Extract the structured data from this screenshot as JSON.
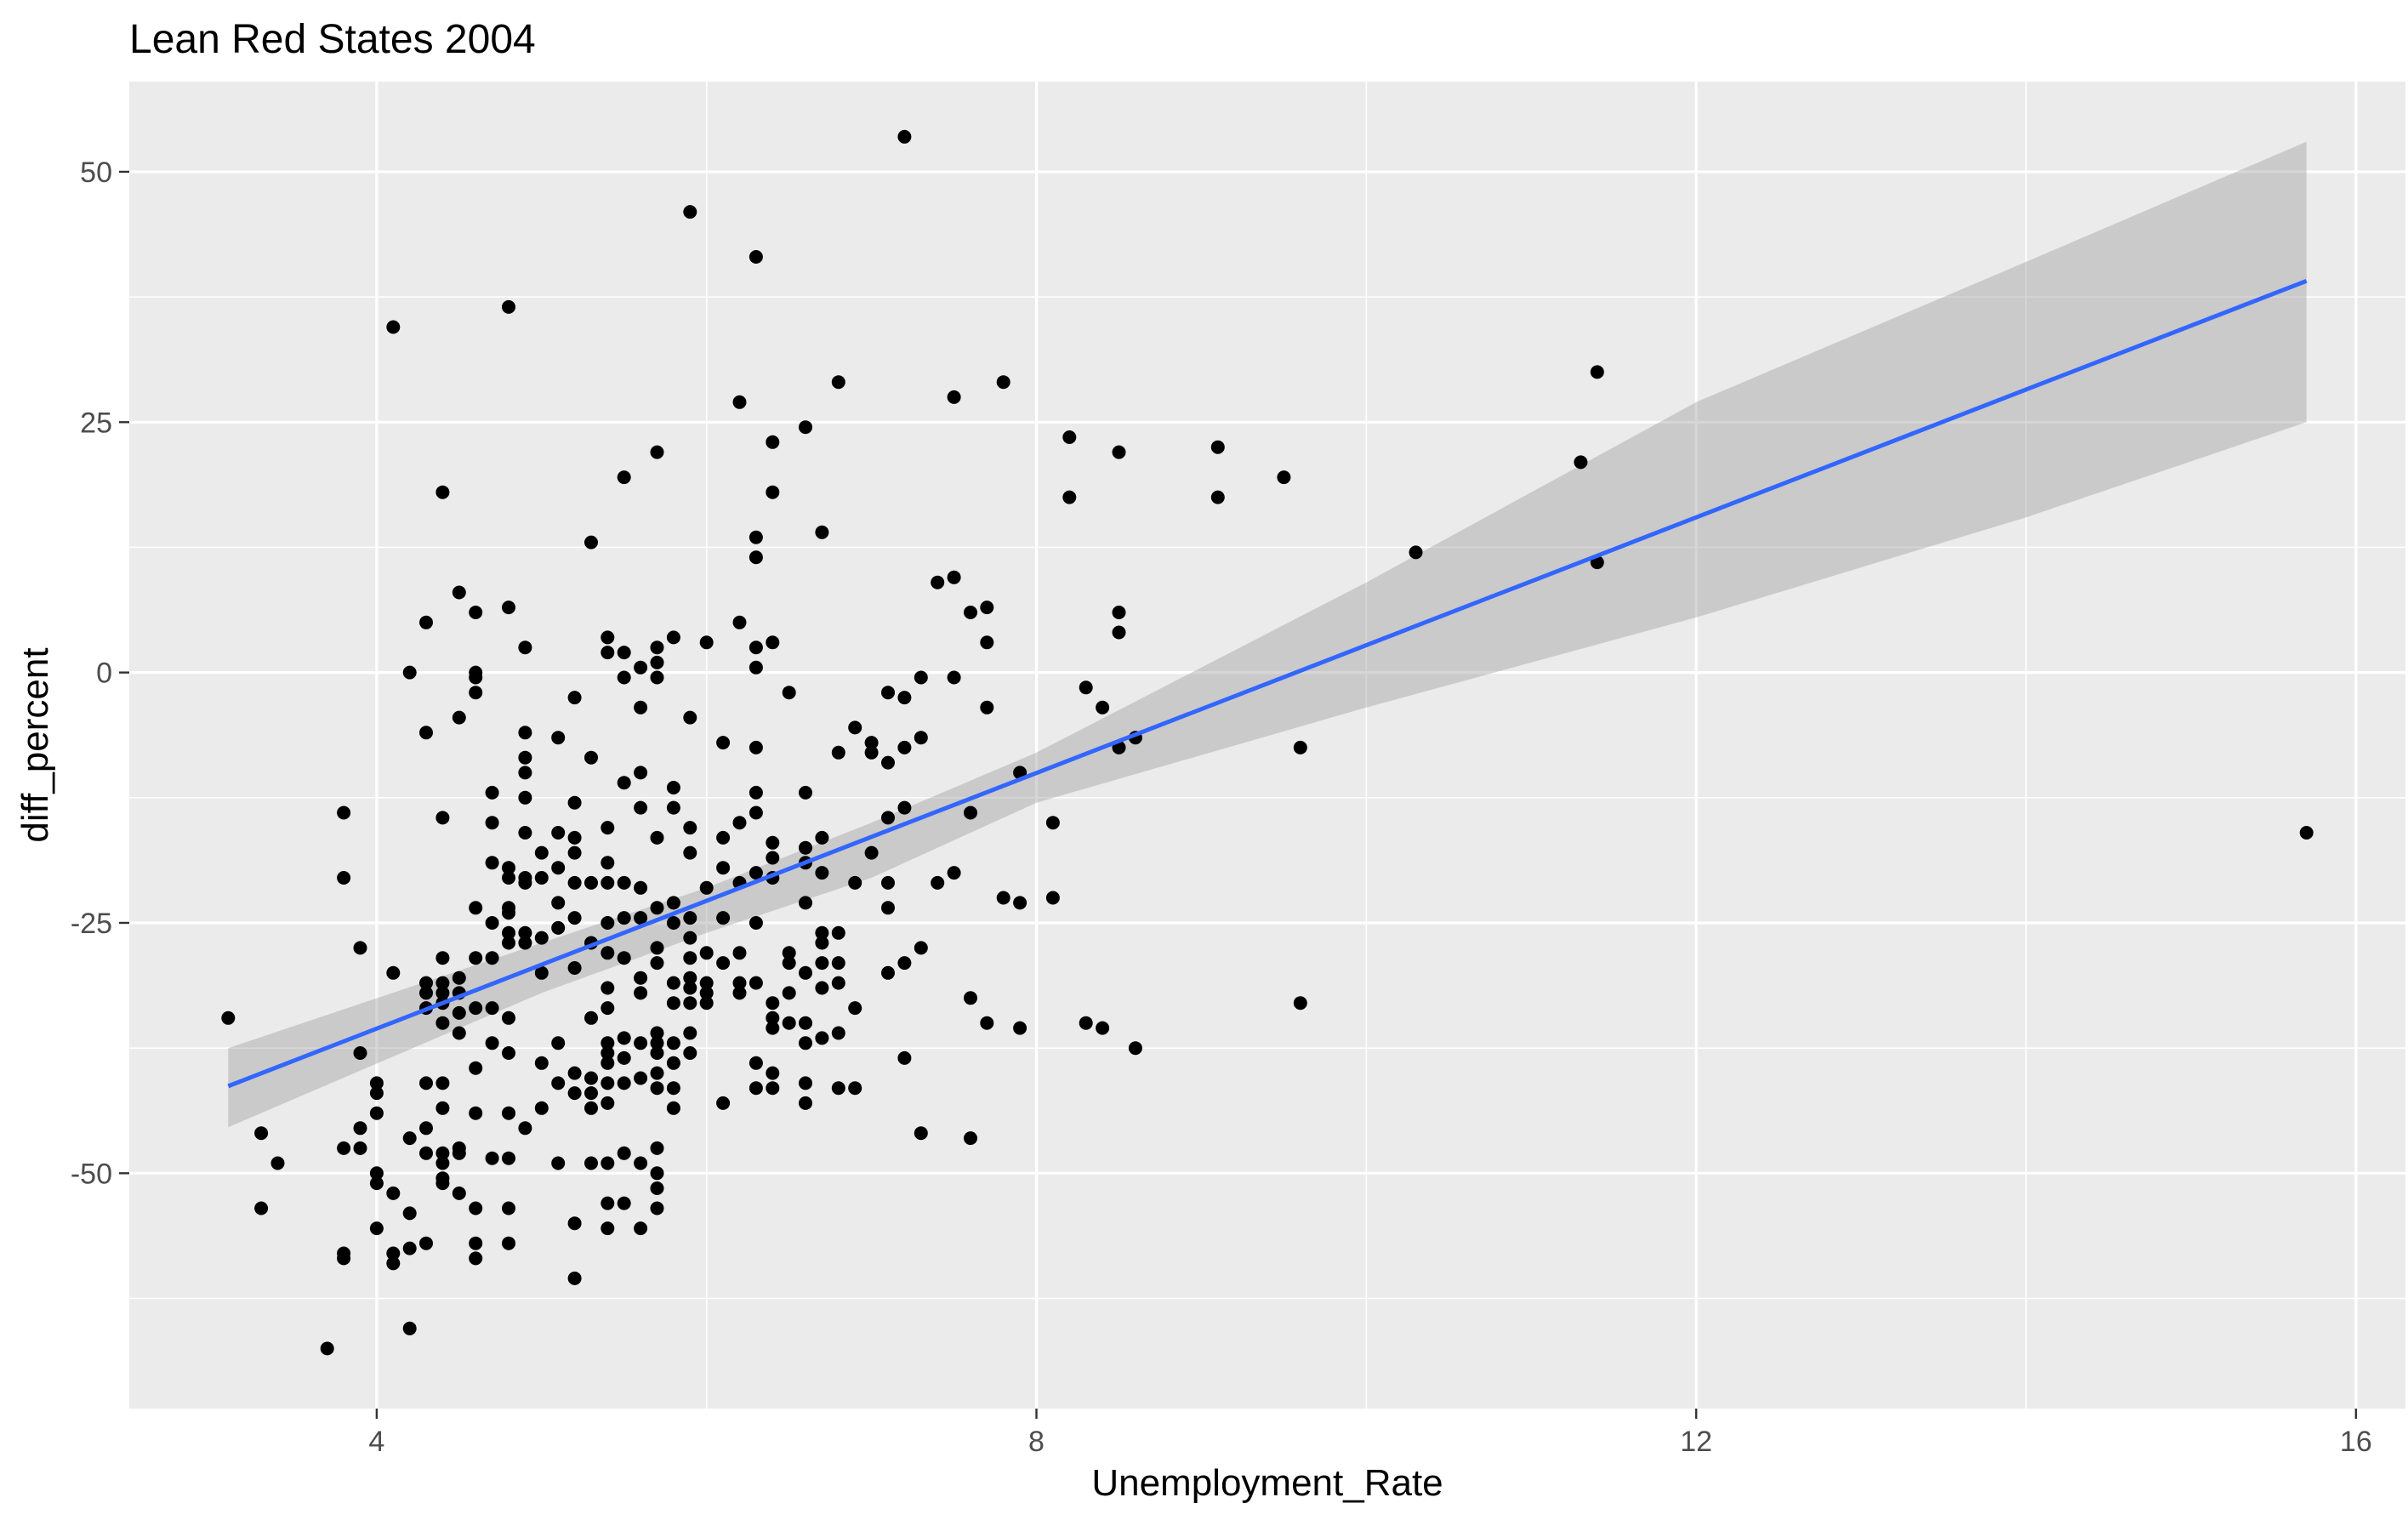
{
  "chart_data": {
    "type": "scatter",
    "title": "Lean Red States 2004",
    "xlabel": "Unemployment_Rate",
    "ylabel": "diff_percent",
    "xlim": [
      2.5,
      16.3
    ],
    "ylim": [
      -73.5,
      59
    ],
    "x_ticks": [
      4,
      8,
      12,
      16
    ],
    "x_tick_labels": [
      "4",
      "8",
      "12",
      "16"
    ],
    "y_ticks": [
      50,
      25,
      0,
      -25,
      -50
    ],
    "y_tick_labels": [
      "50",
      "25",
      "0",
      "-25",
      "-50"
    ],
    "grid": true,
    "legend": "none",
    "colors": {
      "points": "#000000",
      "fit_line": "#3366ff",
      "confidence_band": "#999999",
      "panel": "#ebebeb"
    },
    "fit": {
      "method": "linear",
      "line": [
        [
          3.1,
          -41.3
        ],
        [
          15.7,
          39.1
        ]
      ],
      "band_upper": [
        [
          3.1,
          -37.5
        ],
        [
          5.0,
          -27.0
        ],
        [
          6.0,
          -21.5
        ],
        [
          7.0,
          -15.0
        ],
        [
          8.0,
          -8.0
        ],
        [
          10.0,
          9.0
        ],
        [
          12.0,
          27.0
        ],
        [
          14.0,
          41.0
        ],
        [
          15.7,
          53.0
        ]
      ],
      "band_lower": [
        [
          3.1,
          -45.4
        ],
        [
          5.0,
          -32.0
        ],
        [
          6.0,
          -26.0
        ],
        [
          7.0,
          -20.5
        ],
        [
          8.0,
          -13.0
        ],
        [
          10.0,
          -3.5
        ],
        [
          12.0,
          5.5
        ],
        [
          14.0,
          15.5
        ],
        [
          15.7,
          25.0
        ]
      ]
    },
    "points": [
      [
        3.1,
        -34.5
      ],
      [
        3.3,
        -46
      ],
      [
        3.3,
        -53.5
      ],
      [
        3.4,
        -49
      ],
      [
        3.7,
        -67.5
      ],
      [
        3.8,
        -14
      ],
      [
        3.8,
        -20.5
      ],
      [
        3.8,
        -47.5
      ],
      [
        3.8,
        -58
      ],
      [
        3.8,
        -58.5
      ],
      [
        3.9,
        -27.5
      ],
      [
        3.9,
        -38
      ],
      [
        3.9,
        -45.5
      ],
      [
        3.9,
        -47.5
      ],
      [
        4.0,
        -41
      ],
      [
        4.0,
        -42
      ],
      [
        4.0,
        -44
      ],
      [
        4.0,
        -50
      ],
      [
        4.0,
        -51
      ],
      [
        4.0,
        -55.5
      ],
      [
        4.1,
        -30
      ],
      [
        4.1,
        -52
      ],
      [
        4.1,
        -58
      ],
      [
        4.1,
        -59
      ],
      [
        4.1,
        34.5
      ],
      [
        4.2,
        0
      ],
      [
        4.2,
        -46.5
      ],
      [
        4.2,
        -54
      ],
      [
        4.2,
        -57.5
      ],
      [
        4.2,
        -65.5
      ],
      [
        4.3,
        5
      ],
      [
        4.3,
        -6
      ],
      [
        4.3,
        -31
      ],
      [
        4.3,
        -32
      ],
      [
        4.3,
        -33.5
      ],
      [
        4.3,
        -41
      ],
      [
        4.3,
        -45.5
      ],
      [
        4.3,
        -48
      ],
      [
        4.3,
        -57
      ],
      [
        4.4,
        18
      ],
      [
        4.4,
        -14.5
      ],
      [
        4.4,
        -28.5
      ],
      [
        4.4,
        -31
      ],
      [
        4.4,
        -32
      ],
      [
        4.4,
        -33
      ],
      [
        4.4,
        -35
      ],
      [
        4.4,
        -41
      ],
      [
        4.4,
        -43.5
      ],
      [
        4.4,
        -48
      ],
      [
        4.4,
        -49
      ],
      [
        4.4,
        -50.5
      ],
      [
        4.4,
        -51
      ],
      [
        4.5,
        8
      ],
      [
        4.5,
        -4.5
      ],
      [
        4.5,
        -30.5
      ],
      [
        4.5,
        -32
      ],
      [
        4.5,
        -34
      ],
      [
        4.5,
        -36
      ],
      [
        4.5,
        -47.5
      ],
      [
        4.5,
        -48
      ],
      [
        4.5,
        -52
      ],
      [
        4.6,
        6
      ],
      [
        4.6,
        0
      ],
      [
        4.6,
        -0.5
      ],
      [
        4.6,
        -2
      ],
      [
        4.6,
        -23.5
      ],
      [
        4.6,
        -28.5
      ],
      [
        4.6,
        -33.5
      ],
      [
        4.6,
        -39.5
      ],
      [
        4.6,
        -44
      ],
      [
        4.6,
        -53.5
      ],
      [
        4.6,
        -57
      ],
      [
        4.6,
        -58.5
      ],
      [
        4.7,
        -12
      ],
      [
        4.7,
        -15
      ],
      [
        4.7,
        -19
      ],
      [
        4.7,
        -25
      ],
      [
        4.7,
        -28.5
      ],
      [
        4.7,
        -33.5
      ],
      [
        4.7,
        -37
      ],
      [
        4.7,
        -48.5
      ],
      [
        4.8,
        36.5
      ],
      [
        4.8,
        6.5
      ],
      [
        4.8,
        -19.5
      ],
      [
        4.8,
        -20.5
      ],
      [
        4.8,
        -23.5
      ],
      [
        4.8,
        -24
      ],
      [
        4.8,
        -26
      ],
      [
        4.8,
        -27
      ],
      [
        4.8,
        -34.5
      ],
      [
        4.8,
        -38
      ],
      [
        4.8,
        -44
      ],
      [
        4.8,
        -48.5
      ],
      [
        4.8,
        -53.5
      ],
      [
        4.8,
        -57
      ],
      [
        4.9,
        2.5
      ],
      [
        4.9,
        -6
      ],
      [
        4.9,
        -8.5
      ],
      [
        4.9,
        -10
      ],
      [
        4.9,
        -12.5
      ],
      [
        4.9,
        -16
      ],
      [
        4.9,
        -20.5
      ],
      [
        4.9,
        -21
      ],
      [
        4.9,
        -26
      ],
      [
        4.9,
        -27
      ],
      [
        4.9,
        -45.5
      ],
      [
        5.0,
        -18
      ],
      [
        5.0,
        -20.5
      ],
      [
        5.0,
        -26.5
      ],
      [
        5.0,
        -30
      ],
      [
        5.0,
        -39
      ],
      [
        5.0,
        -43.5
      ],
      [
        5.1,
        -6.5
      ],
      [
        5.1,
        -16
      ],
      [
        5.1,
        -19.5
      ],
      [
        5.1,
        -23
      ],
      [
        5.1,
        -25.5
      ],
      [
        5.1,
        -37
      ],
      [
        5.1,
        -41
      ],
      [
        5.1,
        -49
      ],
      [
        5.2,
        -2.5
      ],
      [
        5.2,
        -13
      ],
      [
        5.2,
        -16.5
      ],
      [
        5.2,
        -18
      ],
      [
        5.2,
        -21
      ],
      [
        5.2,
        -24.5
      ],
      [
        5.2,
        -29.5
      ],
      [
        5.2,
        -40
      ],
      [
        5.2,
        -42
      ],
      [
        5.2,
        -55
      ],
      [
        5.2,
        -60.5
      ],
      [
        5.3,
        13
      ],
      [
        5.3,
        -8.5
      ],
      [
        5.3,
        -21
      ],
      [
        5.3,
        -27
      ],
      [
        5.3,
        -34.5
      ],
      [
        5.3,
        -40.5
      ],
      [
        5.3,
        -42
      ],
      [
        5.3,
        -43.5
      ],
      [
        5.3,
        -49
      ],
      [
        5.4,
        3.5
      ],
      [
        5.4,
        2
      ],
      [
        5.4,
        -15.5
      ],
      [
        5.4,
        -19
      ],
      [
        5.4,
        -21
      ],
      [
        5.4,
        -25
      ],
      [
        5.4,
        -28
      ],
      [
        5.4,
        -31.5
      ],
      [
        5.4,
        -33.5
      ],
      [
        5.4,
        -37
      ],
      [
        5.4,
        -38
      ],
      [
        5.4,
        -39
      ],
      [
        5.4,
        -41
      ],
      [
        5.4,
        -43
      ],
      [
        5.4,
        -49
      ],
      [
        5.4,
        -53
      ],
      [
        5.4,
        -55.5
      ],
      [
        5.5,
        19.5
      ],
      [
        5.5,
        2
      ],
      [
        5.5,
        -0.5
      ],
      [
        5.5,
        -11
      ],
      [
        5.5,
        -21
      ],
      [
        5.5,
        -24.5
      ],
      [
        5.5,
        -28.5
      ],
      [
        5.5,
        -36.5
      ],
      [
        5.5,
        -38.5
      ],
      [
        5.5,
        -41
      ],
      [
        5.5,
        -48
      ],
      [
        5.5,
        -53
      ],
      [
        5.6,
        0.5
      ],
      [
        5.6,
        -3.5
      ],
      [
        5.6,
        -10
      ],
      [
        5.6,
        -13.5
      ],
      [
        5.6,
        -21.5
      ],
      [
        5.6,
        -24.5
      ],
      [
        5.6,
        -30.5
      ],
      [
        5.6,
        -32
      ],
      [
        5.6,
        -37
      ],
      [
        5.6,
        -40.5
      ],
      [
        5.6,
        -49
      ],
      [
        5.6,
        -55.5
      ],
      [
        5.7,
        22
      ],
      [
        5.7,
        2.5
      ],
      [
        5.7,
        1
      ],
      [
        5.7,
        -0.5
      ],
      [
        5.7,
        -16.5
      ],
      [
        5.7,
        -23.5
      ],
      [
        5.7,
        -27.5
      ],
      [
        5.7,
        -29
      ],
      [
        5.7,
        -36
      ],
      [
        5.7,
        -37
      ],
      [
        5.7,
        -38
      ],
      [
        5.7,
        -40
      ],
      [
        5.7,
        -41.5
      ],
      [
        5.7,
        -47.5
      ],
      [
        5.7,
        -50
      ],
      [
        5.7,
        -51.5
      ],
      [
        5.7,
        -53.5
      ],
      [
        5.8,
        3.5
      ],
      [
        5.8,
        -11.5
      ],
      [
        5.8,
        -13.5
      ],
      [
        5.8,
        -23
      ],
      [
        5.8,
        -25
      ],
      [
        5.8,
        -31
      ],
      [
        5.8,
        -33
      ],
      [
        5.8,
        -37
      ],
      [
        5.8,
        -39
      ],
      [
        5.8,
        -41.5
      ],
      [
        5.8,
        -43.5
      ],
      [
        5.9,
        46
      ],
      [
        5.9,
        -4.5
      ],
      [
        5.9,
        -15.5
      ],
      [
        5.9,
        -18
      ],
      [
        5.9,
        -24.5
      ],
      [
        5.9,
        -26.5
      ],
      [
        5.9,
        -28.5
      ],
      [
        5.9,
        -30.5
      ],
      [
        5.9,
        -31.5
      ],
      [
        5.9,
        -33
      ],
      [
        5.9,
        -36
      ],
      [
        5.9,
        -38
      ],
      [
        6.0,
        3
      ],
      [
        6.0,
        -21.5
      ],
      [
        6.0,
        -28
      ],
      [
        6.0,
        -31
      ],
      [
        6.0,
        -32
      ],
      [
        6.0,
        -33
      ],
      [
        6.1,
        -7
      ],
      [
        6.1,
        -16.5
      ],
      [
        6.1,
        -19.5
      ],
      [
        6.1,
        -24.5
      ],
      [
        6.1,
        -29
      ],
      [
        6.1,
        -43
      ],
      [
        6.2,
        27
      ],
      [
        6.2,
        5
      ],
      [
        6.2,
        -15
      ],
      [
        6.2,
        -21
      ],
      [
        6.2,
        -28
      ],
      [
        6.2,
        -31
      ],
      [
        6.2,
        -32
      ],
      [
        6.3,
        41.5
      ],
      [
        6.3,
        13.5
      ],
      [
        6.3,
        11.5
      ],
      [
        6.3,
        2.5
      ],
      [
        6.3,
        0.5
      ],
      [
        6.3,
        -7.5
      ],
      [
        6.3,
        -12
      ],
      [
        6.3,
        -14
      ],
      [
        6.3,
        -20
      ],
      [
        6.3,
        -25
      ],
      [
        6.3,
        -31
      ],
      [
        6.3,
        -39
      ],
      [
        6.3,
        -41.5
      ],
      [
        6.4,
        23
      ],
      [
        6.4,
        18
      ],
      [
        6.4,
        3
      ],
      [
        6.4,
        -17
      ],
      [
        6.4,
        -18.5
      ],
      [
        6.4,
        -20.5
      ],
      [
        6.4,
        -33
      ],
      [
        6.4,
        -34.5
      ],
      [
        6.4,
        -35.5
      ],
      [
        6.4,
        -40
      ],
      [
        6.4,
        -41.5
      ],
      [
        6.5,
        -2
      ],
      [
        6.5,
        -28
      ],
      [
        6.5,
        -29
      ],
      [
        6.5,
        -32
      ],
      [
        6.5,
        -35
      ],
      [
        6.6,
        24.5
      ],
      [
        6.6,
        -12
      ],
      [
        6.6,
        -17.5
      ],
      [
        6.6,
        -19
      ],
      [
        6.6,
        -23
      ],
      [
        6.6,
        -30
      ],
      [
        6.6,
        -35
      ],
      [
        6.6,
        -37
      ],
      [
        6.6,
        -41
      ],
      [
        6.6,
        -43
      ],
      [
        6.7,
        14
      ],
      [
        6.7,
        -16.5
      ],
      [
        6.7,
        -20
      ],
      [
        6.7,
        -26
      ],
      [
        6.7,
        -27
      ],
      [
        6.7,
        -29
      ],
      [
        6.7,
        -31.5
      ],
      [
        6.7,
        -36.5
      ],
      [
        6.8,
        29
      ],
      [
        6.8,
        -8
      ],
      [
        6.8,
        -26
      ],
      [
        6.8,
        -29
      ],
      [
        6.8,
        -31
      ],
      [
        6.8,
        -36
      ],
      [
        6.8,
        -41.5
      ],
      [
        6.9,
        -5.5
      ],
      [
        6.9,
        -21
      ],
      [
        6.9,
        -33.5
      ],
      [
        6.9,
        -41.5
      ],
      [
        7.0,
        -7
      ],
      [
        7.0,
        -8
      ],
      [
        7.0,
        -18
      ],
      [
        7.1,
        -2
      ],
      [
        7.1,
        -9
      ],
      [
        7.1,
        -14.5
      ],
      [
        7.1,
        -21
      ],
      [
        7.1,
        -23.5
      ],
      [
        7.1,
        -30
      ],
      [
        7.2,
        53.5
      ],
      [
        7.2,
        -2.5
      ],
      [
        7.2,
        -7.5
      ],
      [
        7.2,
        -13.5
      ],
      [
        7.2,
        -29
      ],
      [
        7.2,
        -38.5
      ],
      [
        7.3,
        -0.5
      ],
      [
        7.3,
        -6.5
      ],
      [
        7.3,
        -27.5
      ],
      [
        7.3,
        -46
      ],
      [
        7.4,
        9
      ],
      [
        7.4,
        -21
      ],
      [
        7.5,
        27.5
      ],
      [
        7.5,
        9.5
      ],
      [
        7.5,
        -0.5
      ],
      [
        7.5,
        -20
      ],
      [
        7.6,
        6
      ],
      [
        7.6,
        -14
      ],
      [
        7.6,
        -32.5
      ],
      [
        7.6,
        -46.5
      ],
      [
        7.7,
        6.5
      ],
      [
        7.7,
        3
      ],
      [
        7.7,
        -3.5
      ],
      [
        7.7,
        -35
      ],
      [
        7.8,
        29
      ],
      [
        7.8,
        -22.5
      ],
      [
        7.9,
        -10
      ],
      [
        7.9,
        -23
      ],
      [
        7.9,
        -35.5
      ],
      [
        8.1,
        -15
      ],
      [
        8.1,
        -22.5
      ],
      [
        8.2,
        23.5
      ],
      [
        8.2,
        17.5
      ],
      [
        8.3,
        -1.5
      ],
      [
        8.3,
        -35
      ],
      [
        8.4,
        -3.5
      ],
      [
        8.4,
        -35.5
      ],
      [
        8.5,
        22
      ],
      [
        8.5,
        6
      ],
      [
        8.5,
        4
      ],
      [
        8.5,
        -7.5
      ],
      [
        8.6,
        -6.5
      ],
      [
        8.6,
        -37.5
      ],
      [
        9.1,
        22.5
      ],
      [
        9.1,
        17.5
      ],
      [
        9.5,
        19.5
      ],
      [
        9.6,
        -7.5
      ],
      [
        9.6,
        -33
      ],
      [
        10.3,
        12
      ],
      [
        11.3,
        21
      ],
      [
        11.4,
        30
      ],
      [
        11.4,
        11
      ],
      [
        15.7,
        -16
      ]
    ]
  }
}
